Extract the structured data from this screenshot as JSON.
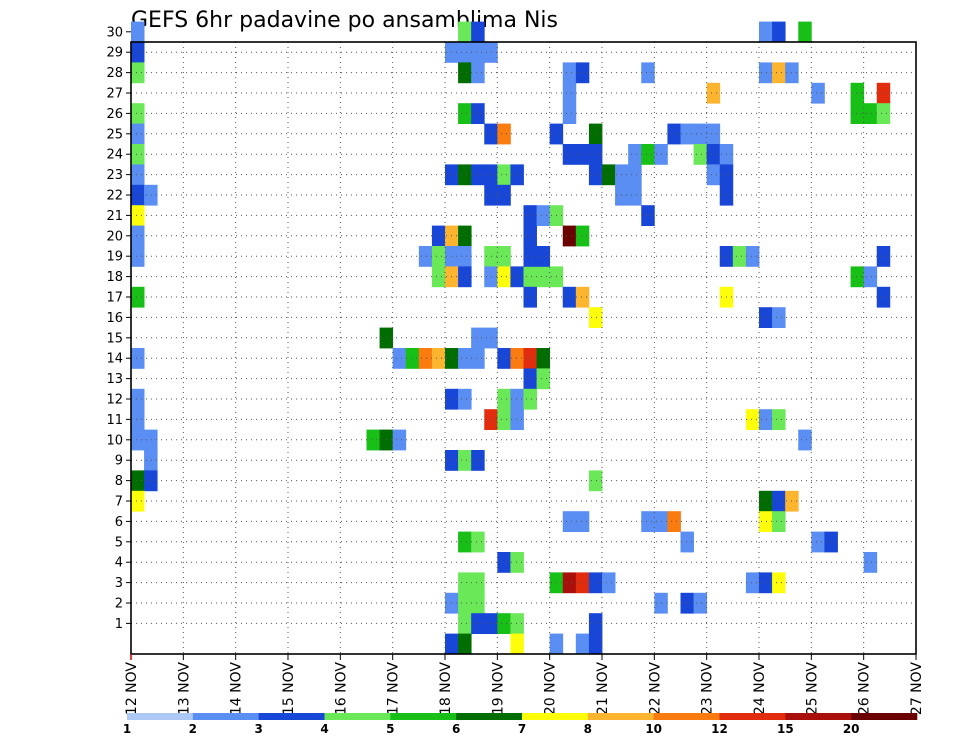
{
  "chart_data": {
    "type": "heatmap",
    "title": "GEFS 6hr padavine po ansamblima Nis",
    "y_ticks": [
      "1",
      "2",
      "3",
      "4",
      "5",
      "6",
      "7",
      "8",
      "9",
      "10",
      "11",
      "12",
      "13",
      "14",
      "15",
      "16",
      "17",
      "18",
      "19",
      "20",
      "21",
      "22",
      "23",
      "24",
      "25",
      "26",
      "27",
      "28",
      "29",
      "30"
    ],
    "x_ticks": [
      "12 NOV",
      "13 NOV",
      "14 NOV",
      "15 NOV",
      "16 NOV",
      "17 NOV",
      "18 NOV",
      "19 NOV",
      "20 NOV",
      "21 NOV",
      "22 NOV",
      "23 NOV",
      "24 NOV",
      "25 NOV",
      "26 NOV",
      "27 NOV"
    ],
    "grid": true,
    "legend": {
      "labels": [
        "1",
        "2",
        "3",
        "4",
        "5",
        "6",
        "7",
        "8",
        "10",
        "12",
        "15",
        "20"
      ],
      "colors": [
        "#aec8f5",
        "#5a8ef2",
        "#1846d6",
        "#6ae858",
        "#17bf17",
        "#006d00",
        "#fefe0a",
        "#fdb42e",
        "#fa7b0f",
        "#e12d0d",
        "#a9100c",
        "#6a0000"
      ]
    },
    "cells": [
      [
        12.0,
        1,
        30
      ],
      [
        12.0,
        2,
        29
      ],
      [
        12.0,
        3,
        28
      ],
      [
        12.0,
        3,
        26
      ],
      [
        12.0,
        1,
        25
      ],
      [
        12.0,
        3,
        24
      ],
      [
        12.0,
        1,
        23
      ],
      [
        12.0,
        2,
        22
      ],
      [
        12.25,
        1,
        22
      ],
      [
        12.0,
        6,
        21
      ],
      [
        12.0,
        1,
        20
      ],
      [
        12.0,
        1,
        19
      ],
      [
        12.0,
        4,
        17
      ],
      [
        12.0,
        1,
        14
      ],
      [
        12.0,
        1,
        12
      ],
      [
        12.0,
        1,
        11
      ],
      [
        12.0,
        1,
        10
      ],
      [
        12.25,
        1,
        10
      ],
      [
        12.25,
        1,
        9
      ],
      [
        12.0,
        5,
        8
      ],
      [
        12.25,
        2,
        8
      ],
      [
        12.0,
        6,
        7
      ],
      [
        18.25,
        3,
        30
      ],
      [
        18.5,
        2,
        30
      ],
      [
        18.0,
        1,
        29
      ],
      [
        18.25,
        1,
        29
      ],
      [
        18.5,
        1,
        29
      ],
      [
        18.75,
        1,
        29
      ],
      [
        18.25,
        5,
        28
      ],
      [
        18.5,
        1,
        28
      ],
      [
        18.25,
        4,
        26
      ],
      [
        18.5,
        2,
        26
      ],
      [
        18.75,
        2,
        25
      ],
      [
        19.0,
        8,
        25
      ],
      [
        18.0,
        2,
        23
      ],
      [
        18.25,
        5,
        23
      ],
      [
        18.5,
        2,
        23
      ],
      [
        18.75,
        2,
        23
      ],
      [
        19.0,
        3,
        23
      ],
      [
        19.25,
        2,
        23
      ],
      [
        18.75,
        2,
        22
      ],
      [
        19.0,
        2,
        22
      ],
      [
        17.75,
        2,
        20
      ],
      [
        18.0,
        7,
        20
      ],
      [
        18.25,
        5,
        20
      ],
      [
        17.5,
        1,
        19
      ],
      [
        17.75,
        3,
        19
      ],
      [
        18.0,
        1,
        19
      ],
      [
        18.25,
        1,
        19
      ],
      [
        18.75,
        3,
        19
      ],
      [
        19.0,
        3,
        19
      ],
      [
        17.75,
        3,
        18
      ],
      [
        18.0,
        7,
        18
      ],
      [
        18.25,
        2,
        18
      ],
      [
        18.75,
        1,
        18
      ],
      [
        19.0,
        6,
        18
      ],
      [
        19.25,
        2,
        18
      ],
      [
        19.5,
        3,
        18
      ],
      [
        19.75,
        3,
        18
      ],
      [
        19.5,
        2,
        21
      ],
      [
        19.75,
        1,
        21
      ],
      [
        19.5,
        2,
        20
      ],
      [
        19.5,
        2,
        19
      ],
      [
        19.75,
        2,
        19
      ],
      [
        19.5,
        2,
        17
      ],
      [
        16.75,
        5,
        15
      ],
      [
        18.5,
        1,
        15
      ],
      [
        18.75,
        1,
        15
      ],
      [
        17.0,
        1,
        14
      ],
      [
        17.25,
        4,
        14
      ],
      [
        17.5,
        8,
        14
      ],
      [
        17.75,
        7,
        14
      ],
      [
        18.0,
        5,
        14
      ],
      [
        18.25,
        1,
        14
      ],
      [
        18.5,
        1,
        14
      ],
      [
        19.0,
        2,
        14
      ],
      [
        19.25,
        8,
        14
      ],
      [
        19.5,
        9,
        14
      ],
      [
        19.75,
        5,
        14
      ],
      [
        19.5,
        2,
        13
      ],
      [
        19.75,
        3,
        13
      ],
      [
        18.0,
        2,
        12
      ],
      [
        18.25,
        1,
        12
      ],
      [
        19.0,
        3,
        12
      ],
      [
        19.25,
        1,
        12
      ],
      [
        19.5,
        3,
        12
      ],
      [
        18.75,
        9,
        11
      ],
      [
        19.0,
        3,
        11
      ],
      [
        19.25,
        1,
        11
      ],
      [
        16.5,
        4,
        10
      ],
      [
        16.75,
        5,
        10
      ],
      [
        17.0,
        1,
        10
      ],
      [
        18.0,
        2,
        9
      ],
      [
        18.25,
        3,
        9
      ],
      [
        18.5,
        2,
        9
      ],
      [
        18.25,
        4,
        5
      ],
      [
        18.5,
        3,
        5
      ],
      [
        19.0,
        2,
        4
      ],
      [
        19.25,
        3,
        4
      ],
      [
        18.25,
        3,
        3
      ],
      [
        18.5,
        3,
        3
      ],
      [
        18.0,
        1,
        2
      ],
      [
        18.25,
        3,
        2
      ],
      [
        18.5,
        3,
        2
      ],
      [
        18.25,
        3,
        1
      ],
      [
        18.5,
        2,
        1
      ],
      [
        18.75,
        2,
        1
      ],
      [
        19.0,
        4,
        1
      ],
      [
        19.25,
        3,
        1
      ],
      [
        18.0,
        2,
        0
      ],
      [
        18.25,
        5,
        0
      ],
      [
        19.25,
        6,
        0
      ],
      [
        20.0,
        2,
        25
      ],
      [
        20.25,
        1,
        26
      ],
      [
        20.25,
        1,
        27
      ],
      [
        20.25,
        1,
        28
      ],
      [
        20.5,
        2,
        28
      ],
      [
        20.75,
        5,
        25
      ],
      [
        20.25,
        2,
        24
      ],
      [
        20.5,
        2,
        24
      ],
      [
        20.75,
        2,
        24
      ],
      [
        20.75,
        2,
        23
      ],
      [
        21.0,
        5,
        23
      ],
      [
        21.25,
        1,
        23
      ],
      [
        21.5,
        1,
        23
      ],
      [
        21.25,
        1,
        22
      ],
      [
        21.5,
        1,
        22
      ],
      [
        20.0,
        3,
        21
      ],
      [
        20.25,
        11,
        20
      ],
      [
        20.5,
        4,
        20
      ],
      [
        20.0,
        3,
        18
      ],
      [
        20.25,
        2,
        17
      ],
      [
        20.5,
        7,
        17
      ],
      [
        20.75,
        6,
        16
      ],
      [
        20.75,
        3,
        8
      ],
      [
        20.0,
        4,
        3
      ],
      [
        20.25,
        10,
        3
      ],
      [
        20.5,
        9,
        3
      ],
      [
        20.75,
        2,
        3
      ],
      [
        21.0,
        1,
        3
      ],
      [
        20.75,
        2,
        1
      ],
      [
        20.25,
        1,
        6
      ],
      [
        20.5,
        1,
        6
      ],
      [
        20.0,
        1,
        0
      ],
      [
        20.5,
        1,
        0
      ],
      [
        20.75,
        2,
        0
      ],
      [
        21.75,
        1,
        28
      ],
      [
        21.5,
        1,
        24
      ],
      [
        21.75,
        4,
        24
      ],
      [
        22.0,
        1,
        24
      ],
      [
        22.25,
        2,
        25
      ],
      [
        22.5,
        1,
        25
      ],
      [
        22.75,
        1,
        25
      ],
      [
        23.0,
        1,
        25
      ],
      [
        22.75,
        3,
        24
      ],
      [
        23.0,
        2,
        24
      ],
      [
        23.25,
        1,
        24
      ],
      [
        23.0,
        1,
        23
      ],
      [
        23.25,
        2,
        23
      ],
      [
        23.25,
        2,
        22
      ],
      [
        23.0,
        7,
        27
      ],
      [
        21.75,
        2,
        21
      ],
      [
        23.25,
        2,
        19
      ],
      [
        23.5,
        3,
        19
      ],
      [
        23.75,
        1,
        19
      ],
      [
        23.25,
        6,
        17
      ],
      [
        21.75,
        1,
        6
      ],
      [
        22.0,
        1,
        6
      ],
      [
        22.25,
        8,
        6
      ],
      [
        22.5,
        1,
        5
      ],
      [
        22.0,
        1,
        2
      ],
      [
        22.5,
        2,
        2
      ],
      [
        22.75,
        1,
        2
      ],
      [
        24.0,
        1,
        30
      ],
      [
        24.25,
        2,
        30
      ],
      [
        24.75,
        4,
        30
      ],
      [
        24.0,
        1,
        28
      ],
      [
        24.25,
        7,
        28
      ],
      [
        24.5,
        1,
        28
      ],
      [
        25.0,
        1,
        27
      ],
      [
        25.75,
        4,
        27
      ],
      [
        26.25,
        9,
        27
      ],
      [
        25.75,
        4,
        26
      ],
      [
        26.0,
        4,
        26
      ],
      [
        26.25,
        3,
        26
      ],
      [
        26.25,
        2,
        19
      ],
      [
        25.75,
        4,
        18
      ],
      [
        26.0,
        1,
        18
      ],
      [
        26.25,
        2,
        17
      ],
      [
        24.0,
        2,
        16
      ],
      [
        24.25,
        1,
        16
      ],
      [
        23.75,
        6,
        11
      ],
      [
        24.0,
        1,
        11
      ],
      [
        24.25,
        3,
        11
      ],
      [
        24.75,
        1,
        10
      ],
      [
        24.0,
        5,
        7
      ],
      [
        24.25,
        2,
        7
      ],
      [
        24.5,
        7,
        7
      ],
      [
        24.0,
        6,
        6
      ],
      [
        24.25,
        3,
        6
      ],
      [
        25.0,
        1,
        5
      ],
      [
        25.25,
        2,
        5
      ],
      [
        26.0,
        1,
        4
      ],
      [
        23.75,
        1,
        3
      ],
      [
        24.0,
        2,
        3
      ],
      [
        24.25,
        6,
        3
      ]
    ]
  }
}
